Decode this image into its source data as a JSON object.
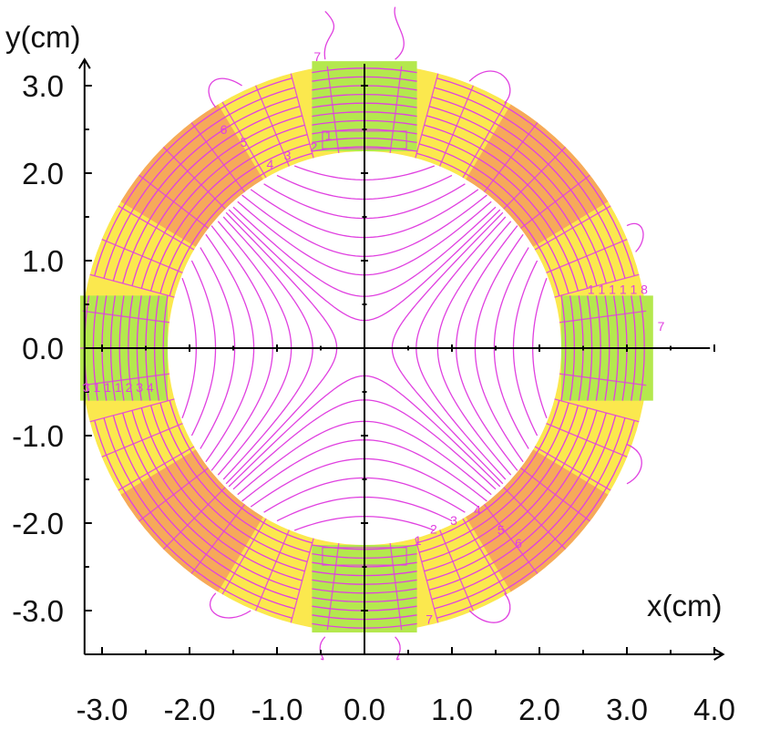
{
  "chart_data": {
    "type": "contour",
    "xlabel": "x(cm)",
    "ylabel": "y(cm)",
    "xlim": [
      -3.2,
      4.0
    ],
    "ylim": [
      -3.5,
      3.3
    ],
    "x_ticks": [
      {
        "v": -3.0,
        "label": "-3.0"
      },
      {
        "v": -2.0,
        "label": "-2.0"
      },
      {
        "v": -1.0,
        "label": "-1.0"
      },
      {
        "v": 0.0,
        "label": "0.0"
      },
      {
        "v": 1.0,
        "label": "1.0"
      },
      {
        "v": 2.0,
        "label": "2.0"
      },
      {
        "v": 3.0,
        "label": "3.0"
      },
      {
        "v": 4.0,
        "label": "4.0"
      }
    ],
    "y_ticks": [
      {
        "v": 3.0,
        "label": "3.0"
      },
      {
        "v": 2.0,
        "label": "2.0"
      },
      {
        "v": 1.0,
        "label": "1.0"
      },
      {
        "v": 0.0,
        "label": "0.0"
      },
      {
        "v": -1.0,
        "label": "-1.0"
      },
      {
        "v": -2.0,
        "label": "-2.0"
      },
      {
        "v": -3.0,
        "label": "-3.0"
      }
    ],
    "ring": {
      "inner_radius": 2.25,
      "outer_radius": 3.25
    },
    "regions": {
      "yoke_color": "#fbe84e",
      "iron_corner_color": "#f6a95a",
      "pole_color": "#b4e84e",
      "contour_color": "#e040e0"
    },
    "contour_labels": [
      {
        "text": "7",
        "x": -0.58,
        "y": 3.28
      },
      {
        "text": "6",
        "x": -1.65,
        "y": 2.45
      },
      {
        "text": "5",
        "x": -1.42,
        "y": 2.3
      },
      {
        "text": "4",
        "x": -1.12,
        "y": 2.05
      },
      {
        "text": "3",
        "x": -0.92,
        "y": 2.15
      },
      {
        "text": "2",
        "x": -0.62,
        "y": 2.25
      },
      {
        "text": "1",
        "x": -0.45,
        "y": 2.38
      },
      {
        "text": "1",
        "x": 0.57,
        "y": -2.25
      },
      {
        "text": "2",
        "x": 0.75,
        "y": -2.12
      },
      {
        "text": "3",
        "x": 0.98,
        "y": -2.02
      },
      {
        "text": "4",
        "x": 1.25,
        "y": -1.9
      },
      {
        "text": "5",
        "x": 1.52,
        "y": -2.13
      },
      {
        "text": "6",
        "x": 1.72,
        "y": -2.28
      },
      {
        "text": "7",
        "x": 0.7,
        "y": -3.15
      },
      {
        "text": "7",
        "x": 3.35,
        "y": 0.2
      },
      {
        "text": "1 1 1 1 1 8",
        "x": 2.55,
        "y": 0.62
      },
      {
        "text": "3 1 1 1 2 3 4",
        "x": -3.22,
        "y": -0.5
      }
    ]
  }
}
